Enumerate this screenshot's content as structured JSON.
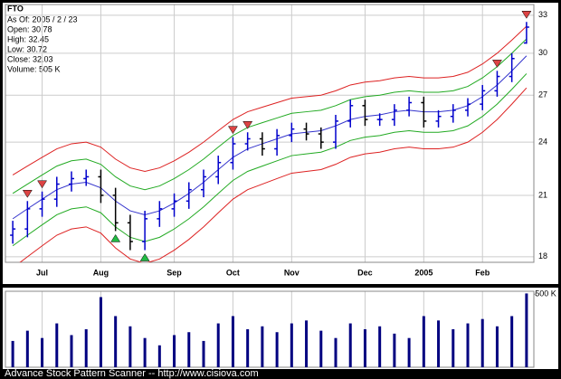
{
  "chart_data": {
    "type": "ohlc",
    "title": "FTO",
    "info": [
      "As Of: 2005 / 2 / 23",
      "Open: 30.78",
      "High: 32.45",
      "Low: 30.72",
      "Close: 32.03",
      "Volume: 505 K"
    ],
    "categories": [
      null,
      null,
      "Jul",
      null,
      null,
      null,
      "Aug",
      null,
      null,
      null,
      null,
      "Sep",
      null,
      null,
      null,
      "Oct",
      null,
      null,
      null,
      "Nov",
      null,
      null,
      null,
      null,
      "Dec",
      null,
      null,
      null,
      "2005",
      null,
      null,
      null,
      "Feb",
      null,
      null,
      null
    ],
    "open": [
      19.0,
      19.3,
      20.3,
      20.8,
      21.6,
      21.9,
      22.0,
      21.0,
      19.6,
      18.7,
      19.8,
      20.3,
      20.7,
      21.3,
      22.0,
      22.8,
      23.9,
      24.2,
      23.6,
      24.4,
      24.8,
      24.5,
      24.0,
      25.3,
      26.3,
      25.4,
      25.4,
      26.0,
      26.5,
      25.3,
      25.6,
      26.0,
      26.4,
      27.3,
      28.3,
      30.78
    ],
    "high": [
      19.7,
      20.7,
      21.2,
      22.0,
      22.3,
      22.4,
      22.4,
      21.4,
      20.0,
      20.2,
      20.7,
      21.1,
      21.7,
      22.4,
      23.2,
      24.3,
      24.6,
      24.6,
      24.8,
      25.2,
      25.2,
      24.9,
      25.7,
      26.7,
      26.7,
      25.8,
      26.4,
      26.9,
      26.9,
      26.0,
      26.4,
      26.8,
      27.7,
      28.7,
      30.0,
      32.45
    ],
    "low": [
      18.6,
      18.9,
      19.9,
      20.4,
      21.2,
      21.5,
      20.6,
      19.2,
      18.3,
      18.3,
      19.4,
      19.9,
      20.3,
      20.9,
      21.6,
      22.4,
      23.5,
      23.2,
      23.2,
      24.0,
      24.1,
      23.6,
      23.6,
      24.9,
      25.0,
      25.0,
      25.0,
      25.6,
      24.9,
      24.9,
      25.2,
      25.6,
      26.0,
      26.9,
      27.9,
      30.72
    ],
    "close": [
      19.3,
      20.3,
      20.8,
      21.6,
      21.9,
      22.0,
      21.0,
      19.6,
      18.7,
      19.8,
      20.3,
      20.7,
      21.3,
      22.0,
      22.8,
      23.9,
      24.2,
      23.6,
      24.4,
      24.8,
      24.5,
      24.0,
      25.3,
      26.3,
      25.4,
      25.4,
      26.0,
      26.5,
      25.3,
      25.6,
      26.0,
      26.4,
      27.3,
      28.3,
      29.6,
      32.03
    ],
    "up_color": "#0000cc",
    "down_color": "#000000",
    "bands": [
      {
        "color": "#dd2222",
        "values": [
          22.1,
          22.6,
          23.1,
          23.6,
          23.9,
          24.0,
          23.7,
          23.0,
          22.5,
          22.3,
          22.5,
          22.9,
          23.4,
          24.0,
          24.7,
          25.4,
          25.9,
          26.2,
          26.5,
          26.8,
          26.9,
          27.0,
          27.3,
          27.7,
          27.9,
          28.0,
          28.2,
          28.3,
          28.2,
          28.2,
          28.3,
          28.6,
          29.2,
          30.0,
          31.0,
          32.1
        ]
      },
      {
        "color": "#22aa22",
        "values": [
          21.1,
          21.6,
          22.1,
          22.6,
          22.9,
          23.0,
          22.7,
          22.0,
          21.5,
          21.3,
          21.5,
          21.9,
          22.4,
          23.0,
          23.7,
          24.4,
          24.9,
          25.2,
          25.5,
          25.8,
          25.9,
          26.0,
          26.3,
          26.7,
          26.9,
          27.0,
          27.2,
          27.3,
          27.2,
          27.2,
          27.3,
          27.6,
          28.2,
          29.0,
          30.0,
          31.1
        ]
      },
      {
        "color": "#3333cc",
        "values": [
          19.8,
          20.3,
          20.8,
          21.3,
          21.6,
          21.7,
          21.4,
          20.7,
          20.2,
          20.0,
          20.2,
          20.6,
          21.1,
          21.7,
          22.4,
          23.1,
          23.6,
          23.9,
          24.2,
          24.5,
          24.6,
          24.7,
          25.0,
          25.4,
          25.6,
          25.7,
          25.9,
          26.0,
          25.9,
          25.9,
          26.0,
          26.3,
          26.9,
          27.7,
          28.7,
          29.8
        ]
      },
      {
        "color": "#22aa22",
        "values": [
          18.5,
          19.0,
          19.5,
          20.0,
          20.3,
          20.4,
          20.1,
          19.4,
          18.9,
          18.7,
          18.9,
          19.3,
          19.8,
          20.4,
          21.1,
          21.8,
          22.3,
          22.6,
          22.9,
          23.2,
          23.3,
          23.4,
          23.7,
          24.1,
          24.3,
          24.4,
          24.6,
          24.7,
          24.6,
          24.6,
          24.7,
          25.0,
          25.6,
          26.4,
          27.4,
          28.5
        ]
      },
      {
        "color": "#dd2222",
        "values": [
          17.5,
          18.0,
          18.5,
          19.0,
          19.3,
          19.4,
          19.1,
          18.4,
          17.9,
          17.7,
          17.9,
          18.3,
          18.8,
          19.4,
          20.1,
          20.8,
          21.3,
          21.6,
          21.9,
          22.2,
          22.3,
          22.4,
          22.7,
          23.1,
          23.3,
          23.4,
          23.6,
          23.7,
          23.6,
          23.6,
          23.7,
          24.0,
          24.6,
          25.4,
          26.4,
          27.5
        ]
      }
    ],
    "sell_signals": [
      1,
      2,
      15,
      16,
      33,
      35
    ],
    "sell_color": "#dd4444",
    "buy_signals": [
      7,
      9
    ],
    "buy_color": "#22bb44",
    "log_scale": true,
    "grid": true,
    "ylim": [
      17.75,
      33.9
    ],
    "yticks": [
      18,
      21,
      24,
      27,
      30,
      33
    ],
    "volume": {
      "color": "#000080",
      "ylim": [
        0,
        520
      ],
      "yticks": [
        {
          "value": 500,
          "label": "500 K"
        }
      ],
      "values": [
        180,
        250,
        200,
        300,
        220,
        260,
        480,
        350,
        280,
        200,
        150,
        220,
        240,
        180,
        300,
        350,
        260,
        280,
        240,
        300,
        320,
        250,
        200,
        300,
        260,
        280,
        230,
        200,
        350,
        320,
        260,
        300,
        330,
        280,
        350,
        505
      ]
    },
    "footer": "Advance Stock Pattern Scanner -- http://www.cisiova.com"
  }
}
